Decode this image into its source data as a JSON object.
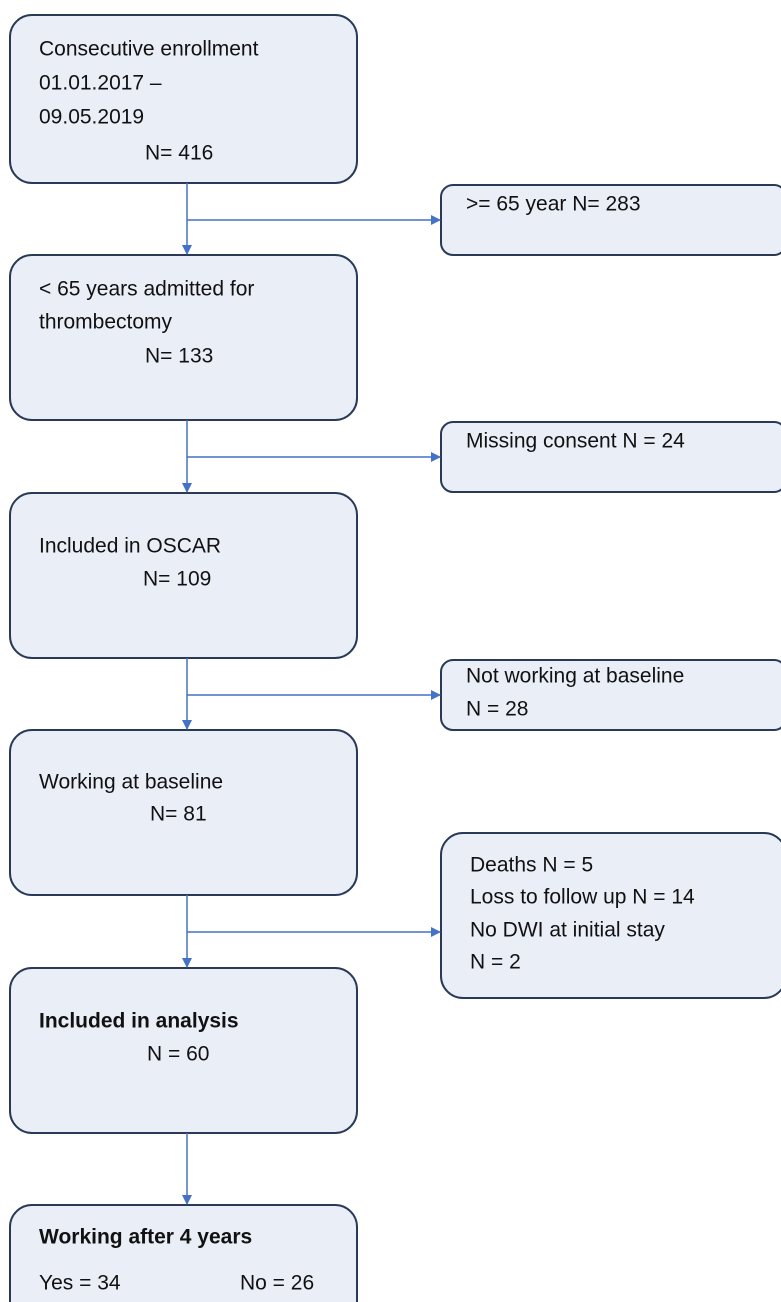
{
  "nodes": [
    {
      "lines": [
        "Consecutive enrollment",
        "01.01.2017 –",
        "09.05.2019",
        "N= 416"
      ]
    },
    {
      "lines": [
        "< 65 years admitted for",
        "thrombectomy",
        "N= 133"
      ]
    },
    {
      "lines": [
        "Included in OSCAR",
        "N= 109"
      ]
    },
    {
      "lines": [
        "Working at baseline",
        "N= 81"
      ]
    },
    {
      "lines": [
        "Included in analysis",
        "N = 60"
      ]
    },
    {
      "lines": [
        "Working after 4 years",
        "Yes = 34",
        "No = 26"
      ]
    }
  ],
  "exclusions": [
    {
      "lines": [
        ">= 65 year  N= 283"
      ]
    },
    {
      "lines": [
        "Missing consent N = 24"
      ]
    },
    {
      "lines": [
        "Not working at baseline",
        "N = 28"
      ]
    },
    {
      "lines": [
        "Deaths N = 5",
        "Loss to follow up N = 14",
        "No DWI at initial stay",
        "N = 2"
      ]
    }
  ]
}
